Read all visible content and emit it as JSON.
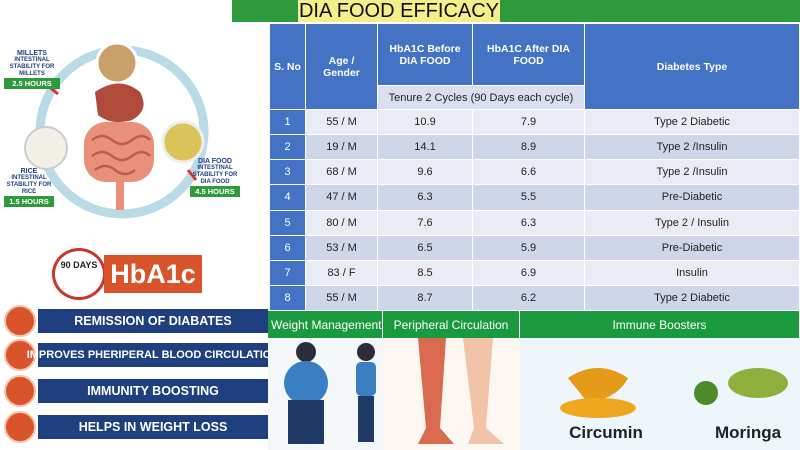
{
  "header": {
    "title": "DIA FOOD EFFICACY"
  },
  "digestion": {
    "items": [
      {
        "name": "MILLETS",
        "caption": "INTESTINAL STABILITY FOR MILLETS",
        "hours": "2.5 HOURS"
      },
      {
        "name": "RICE",
        "caption": "INTESTINAL STABILITY FOR RICE",
        "hours": "1.5 HOURS"
      },
      {
        "name": "DIA FOOD",
        "caption": "INTESTINAL STABILITY FOR DIA FOOD",
        "hours": "4.5 HOURS"
      }
    ]
  },
  "badge": {
    "days": "90 DAYS",
    "label": "HbA1c"
  },
  "benefits": [
    "REMISSION OF DIABATES",
    "IMPROVES PHERIPERAL BLOOD CIRCULATION",
    "IMMUNITY BOOSTING",
    "HELPS IN WEIGHT LOSS"
  ],
  "table": {
    "columns": [
      "S. No",
      "Age / Gender",
      "HbA1C Before DIA FOOD",
      "HbA1C After DIA FOOD",
      "Diabetes Type"
    ],
    "subheader": "Tenure 2 Cycles (90 Days each cycle)",
    "rows": [
      [
        "1",
        "55 / M",
        "10.9",
        "7.9",
        "Type 2 Diabetic"
      ],
      [
        "2",
        "19 / M",
        "14.1",
        "8.9",
        "Type 2 /Insulin"
      ],
      [
        "3",
        "68 / M",
        "9.6",
        "6.6",
        "Type 2 /Insulin"
      ],
      [
        "4",
        "47 / M",
        "6.3",
        "5.5",
        "Pre-Diabetic"
      ],
      [
        "5",
        "80 / M",
        "7.6",
        "6.3",
        "Type 2 / Insulin"
      ],
      [
        "6",
        "53 / M",
        "6.5",
        "5.9",
        "Pre-Diabetic"
      ],
      [
        "7",
        "83 / F",
        "8.5",
        "6.9",
        "Insulin"
      ],
      [
        "8",
        "55 / M",
        "8.7",
        "6.2",
        "Type 2 Diabetic"
      ]
    ]
  },
  "panels": [
    {
      "title": "Weight Management"
    },
    {
      "title": "Peripheral Circulation"
    },
    {
      "title": "Immune Boosters",
      "labels": [
        "Circumin",
        "Moringa"
      ]
    }
  ]
}
